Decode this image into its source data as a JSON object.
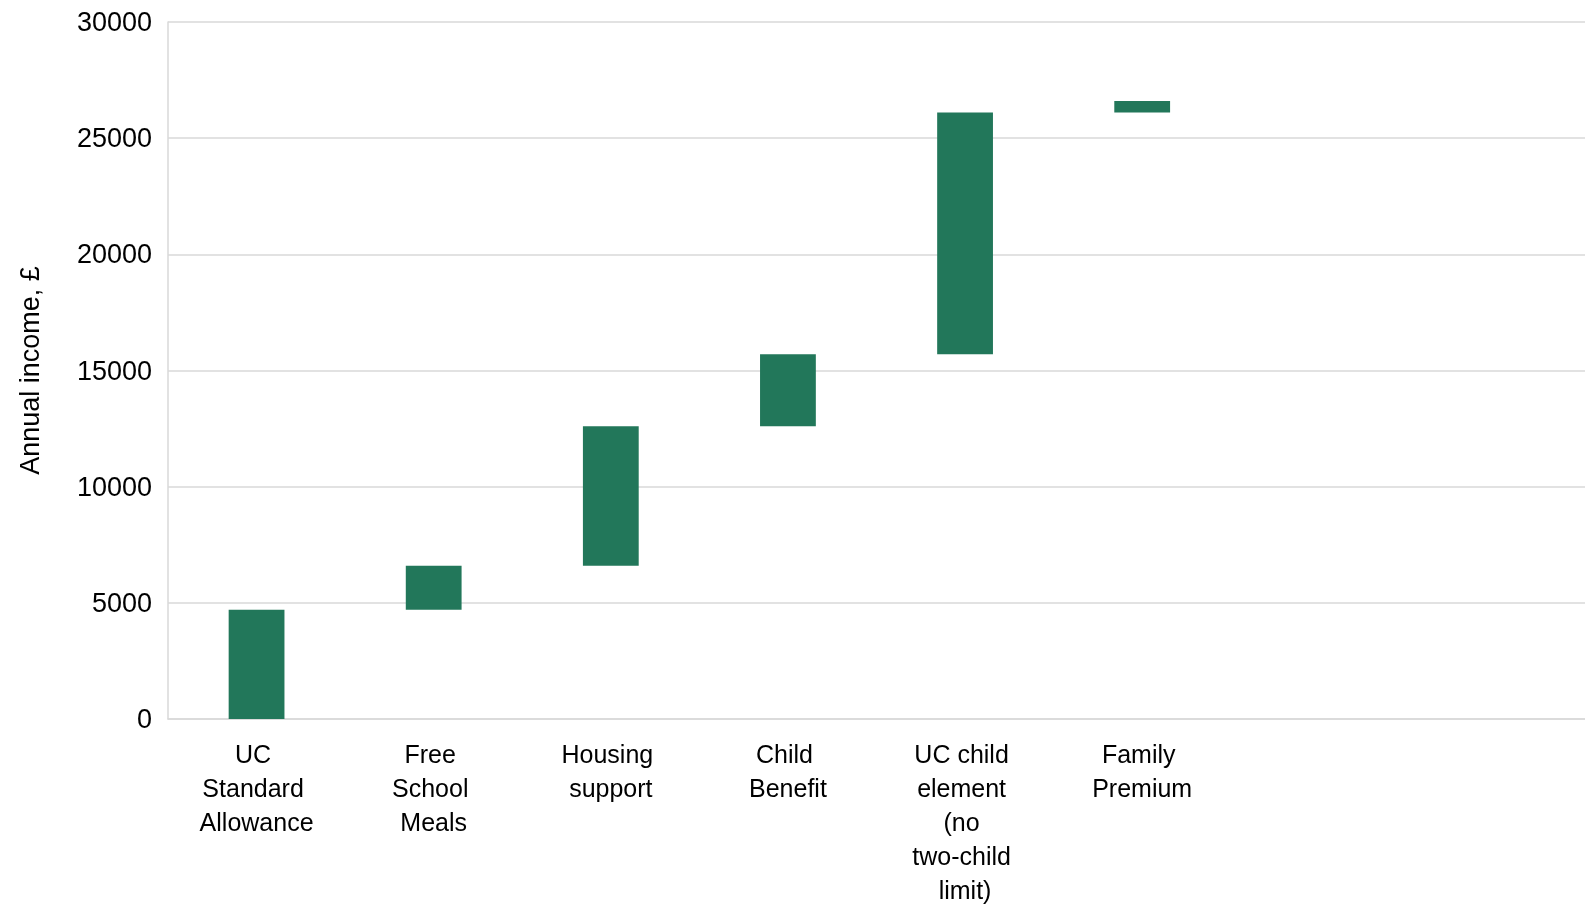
{
  "chart_data": {
    "type": "bar",
    "ylabel": "Annual income, £",
    "categories": [
      "UC Standard Allowance",
      "Free School Meals",
      "Housing support",
      "Child Benefit",
      "UC child element (no two-child limit)",
      "Family Premium",
      null,
      null
    ],
    "values": [
      4700,
      1900,
      6000,
      3100,
      10400,
      500,
      null,
      null
    ],
    "base": [
      0,
      4700,
      6600,
      12600,
      15700,
      26100,
      null,
      null
    ],
    "color": "#22775a",
    "ylim": [
      0,
      30000
    ],
    "yticks": [
      0,
      5000,
      10000,
      15000,
      20000,
      25000,
      30000
    ],
    "grid": "y"
  }
}
